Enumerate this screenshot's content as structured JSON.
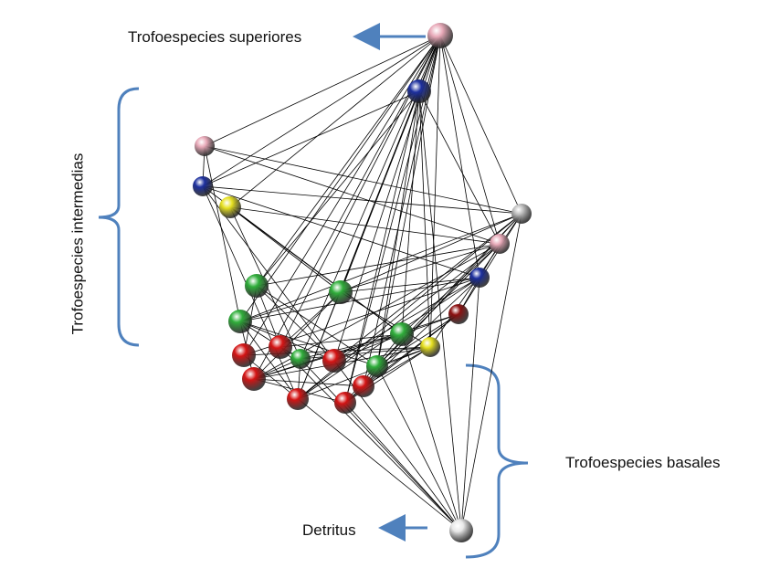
{
  "labels": {
    "top": "Trofoespecies superiores",
    "intermediate": "Trofoespecies intermedias",
    "basal": "Trofoespecies basales",
    "detritus": "Detritus"
  },
  "colors": {
    "pink": "#e8a9b8",
    "blue": "#1c2f9e",
    "yellow": "#e6e020",
    "green": "#2fae3a",
    "red": "#d41414",
    "darkred": "#8c1010",
    "white": "#e8e8e8",
    "grey": "#bdbdbd",
    "arrow": "#4f81bd",
    "edge": "#000000"
  },
  "nodes": [
    {
      "id": "n1",
      "color": "pink",
      "group": "top"
    },
    {
      "id": "n2",
      "color": "blue",
      "group": "intermediate"
    },
    {
      "id": "n3",
      "color": "pink",
      "group": "intermediate"
    },
    {
      "id": "n4",
      "color": "blue",
      "group": "intermediate"
    },
    {
      "id": "n5",
      "color": "yellow",
      "group": "intermediate"
    },
    {
      "id": "n6",
      "color": "grey",
      "group": "intermediate"
    },
    {
      "id": "n7",
      "color": "pink",
      "group": "intermediate"
    },
    {
      "id": "n8",
      "color": "blue",
      "group": "intermediate"
    },
    {
      "id": "n9",
      "color": "darkred",
      "group": "intermediate"
    },
    {
      "id": "n10",
      "color": "green",
      "group": "intermediate"
    },
    {
      "id": "n11",
      "color": "green",
      "group": "intermediate"
    },
    {
      "id": "n12",
      "color": "green",
      "group": "intermediate"
    },
    {
      "id": "n13",
      "color": "green",
      "group": "intermediate"
    },
    {
      "id": "n14",
      "color": "yellow",
      "group": "intermediate"
    },
    {
      "id": "n15",
      "color": "red",
      "group": "basal"
    },
    {
      "id": "n16",
      "color": "red",
      "group": "basal"
    },
    {
      "id": "n17",
      "color": "green",
      "group": "basal"
    },
    {
      "id": "n18",
      "color": "red",
      "group": "basal"
    },
    {
      "id": "n19",
      "color": "green",
      "group": "basal"
    },
    {
      "id": "n20",
      "color": "red",
      "group": "basal"
    },
    {
      "id": "n21",
      "color": "red",
      "group": "basal"
    },
    {
      "id": "n22",
      "color": "red",
      "group": "basal"
    },
    {
      "id": "n23",
      "color": "red",
      "group": "basal"
    },
    {
      "id": "n24",
      "color": "white",
      "group": "detritus"
    }
  ]
}
